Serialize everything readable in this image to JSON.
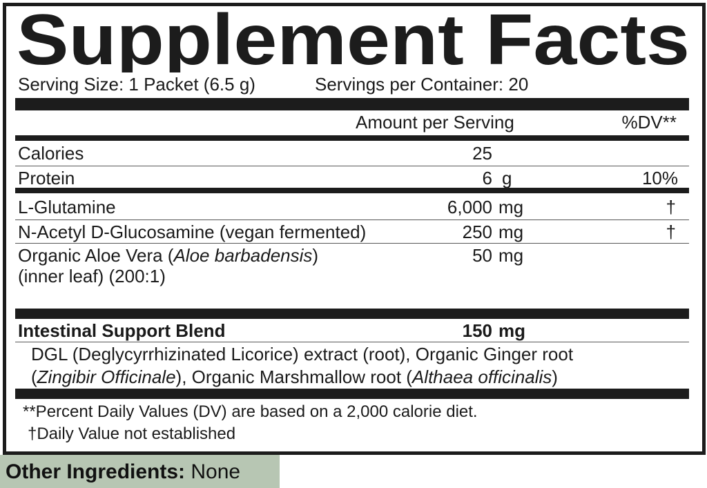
{
  "title": "Supplement Facts",
  "serving_size": "Serving Size: 1 Packet (6.5 g)",
  "servings_per_container": "Servings per Container: 20",
  "header": {
    "amount": "Amount per Serving",
    "dv": "%DV**"
  },
  "rows": [
    {
      "name": "Calories",
      "amount": "25",
      "unit": "",
      "dv": ""
    },
    {
      "name": "Protein",
      "amount": "6",
      "unit": "g",
      "dv": "10%"
    },
    {
      "name": "L-Glutamine",
      "amount": "6,000",
      "unit": "mg",
      "dv": "†"
    },
    {
      "name": "N-Acetyl D-Glucosamine (vegan fermented)",
      "amount": "250",
      "unit": "mg",
      "dv": "†"
    },
    {
      "name_prefix": "Organic Aloe Vera (",
      "name_italic": "Aloe barbadensis",
      "name_suffix": ")",
      "name_line2": "(inner leaf) (200:1)",
      "amount": "50",
      "unit": "mg",
      "dv": ""
    }
  ],
  "blend": {
    "name": "Intestinal Support Blend",
    "amount": "150",
    "unit": "mg",
    "line1": "DGL (Deglycyrrhizinated Licorice) extract (root), Organic Ginger root",
    "line2_a": "(",
    "line2_italic1": "Zingibir Officinale",
    "line2_b": "), Organic Marshmallow root (",
    "line2_italic2": "Althaea officinalis",
    "line2_c": ")"
  },
  "footnotes": {
    "dv": "**Percent Daily Values (DV) are based on a 2,000 calorie diet.",
    "dagger": "†Daily Value not established"
  },
  "other_ingredients": {
    "label": "Other Ingredients:",
    "value": " None",
    "bg_color": "#b7c6b3"
  }
}
